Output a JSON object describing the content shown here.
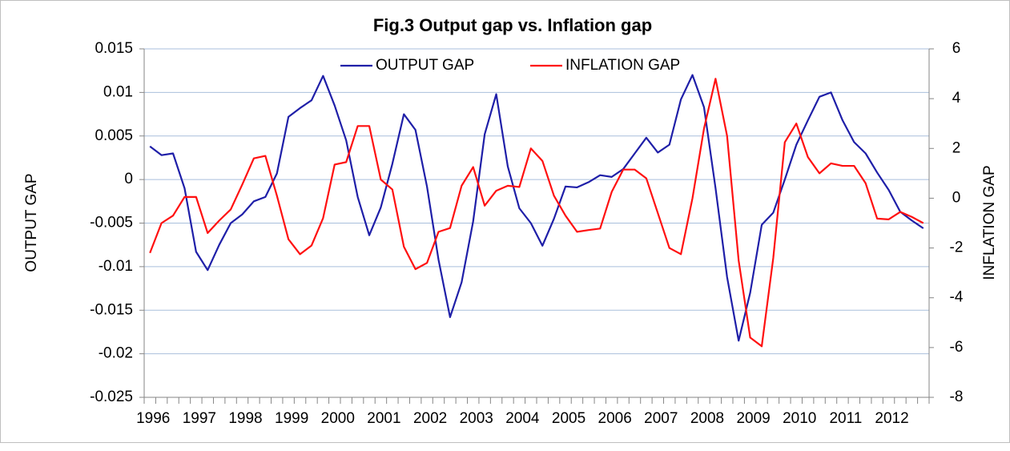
{
  "chart_data": {
    "type": "line",
    "title": "Fig.3 Output gap vs. Inflation gap",
    "ylabel": "OUTPUT GAP",
    "y2label": "INFLATION GAP",
    "categories": [
      "1996",
      null,
      null,
      null,
      "1997",
      null,
      null,
      null,
      "1998",
      null,
      null,
      null,
      "1999",
      null,
      null,
      null,
      "2000",
      null,
      null,
      null,
      "2001",
      null,
      null,
      null,
      "2002",
      null,
      null,
      null,
      "2003",
      null,
      null,
      null,
      "2004",
      null,
      null,
      null,
      "2005",
      null,
      null,
      null,
      "2006",
      null,
      null,
      null,
      "2007",
      null,
      null,
      null,
      "2008",
      null,
      null,
      null,
      "2009",
      null,
      null,
      null,
      "2010",
      null,
      null,
      null,
      "2011",
      null,
      null,
      null,
      "2012",
      null,
      null,
      null
    ],
    "series": [
      {
        "name": "OUTPUT GAP",
        "color": "#1f1fa8",
        "values": [
          0.0038,
          0.0028,
          0.003,
          -0.001,
          -0.0083,
          -0.0104,
          -0.0075,
          -0.005,
          -0.004,
          -0.0025,
          -0.002,
          0.0007,
          0.0072,
          0.0082,
          0.0091,
          0.0119,
          0.0085,
          0.0045,
          -0.002,
          -0.0064,
          -0.0032,
          0.0018,
          0.0075,
          0.0057,
          -0.0008,
          -0.0092,
          -0.0158,
          -0.0118,
          -0.0048,
          0.0052,
          0.0098,
          0.0015,
          -0.0033,
          -0.005,
          -0.0076,
          -0.0045,
          -0.0008,
          -0.0009,
          -0.0003,
          0.0005,
          0.0003,
          0.0012,
          0.003,
          0.0048,
          0.0031,
          0.004,
          0.0092,
          0.012,
          0.0083,
          -0.001,
          -0.0112,
          -0.0185,
          -0.013,
          -0.0052,
          -0.0038,
          0.0,
          0.004,
          0.0068,
          0.0095,
          0.01,
          0.0068,
          0.0043,
          0.003,
          0.0008,
          -0.0012,
          -0.0037,
          -0.0047,
          -0.0056
        ]
      },
      {
        "name": "INFLATION GAP",
        "color": "#ff1010",
        "axis": "y2",
        "values": [
          -2.2,
          -1.0,
          -0.7,
          0.05,
          0.05,
          -1.4,
          -0.9,
          -0.45,
          0.55,
          1.6,
          1.7,
          0.1,
          -1.65,
          -2.25,
          -1.9,
          -0.8,
          1.35,
          1.45,
          2.9,
          2.9,
          0.75,
          0.35,
          -1.95,
          -2.85,
          -2.6,
          -1.35,
          -1.2,
          0.5,
          1.25,
          -0.3,
          0.3,
          0.5,
          0.45,
          2.0,
          1.5,
          0.1,
          -0.7,
          -1.35,
          -1.28,
          -1.22,
          0.25,
          1.15,
          1.15,
          0.8,
          -0.6,
          -2.0,
          -2.25,
          0.0,
          2.8,
          4.8,
          2.5,
          -2.5,
          -5.6,
          -5.95,
          -2.4,
          2.25,
          3.0,
          1.65,
          1.0,
          1.4,
          1.3,
          1.3,
          0.6,
          -0.82,
          -0.85,
          -0.55,
          -0.75,
          -1.0
        ]
      }
    ],
    "ylim": [
      -0.025,
      0.015
    ],
    "yticks": [
      -0.025,
      -0.02,
      -0.015,
      -0.01,
      -0.005,
      0,
      0.005,
      0.01,
      0.015
    ],
    "y2lim": [
      -8,
      6
    ],
    "y2ticks": [
      -8,
      -6,
      -4,
      -2,
      0,
      2,
      4,
      6
    ],
    "grid": true,
    "legend": "top"
  }
}
